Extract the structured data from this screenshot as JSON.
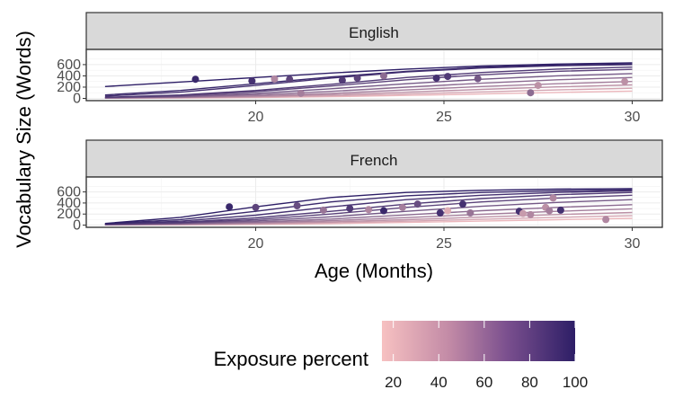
{
  "chart_data": {
    "type": "line",
    "xlabel": "Age (Months)",
    "ylabel": "Vocabulary Size (Words)",
    "xlim": [
      15.5,
      30.8
    ],
    "ylim": [
      -40,
      870
    ],
    "x_ticks": [
      20,
      25,
      30
    ],
    "y_ticks": [
      0,
      200,
      400,
      600
    ],
    "grid": true,
    "legend": {
      "title": "Exposure percent",
      "position": "bottom",
      "min": 15,
      "max": 100,
      "ticks": [
        20,
        40,
        60,
        80,
        100
      ],
      "color_low": "#f7c1c1",
      "color_high": "#2d1e66"
    },
    "panels": [
      {
        "label": "English",
        "curves": [
          {
            "exposure": 100,
            "x": [
              16,
              18,
              20,
              22,
              24,
              26,
              28,
              30
            ],
            "y": [
              210,
              290,
              370,
              450,
              520,
              575,
              610,
              630
            ]
          },
          {
            "exposure": 95,
            "x": [
              16,
              18,
              20,
              22,
              24,
              26,
              28,
              30
            ],
            "y": [
              60,
              140,
              260,
              380,
              480,
              550,
              590,
              610
            ]
          },
          {
            "exposure": 90,
            "x": [
              16,
              18,
              20,
              22,
              24,
              26,
              28,
              30
            ],
            "y": [
              40,
              110,
              230,
              360,
              470,
              540,
              580,
              600
            ]
          },
          {
            "exposure": 85,
            "x": [
              16,
              18,
              20,
              22,
              24,
              26,
              28,
              30
            ],
            "y": [
              20,
              60,
              140,
              250,
              370,
              460,
              520,
              555
            ]
          },
          {
            "exposure": 80,
            "x": [
              16,
              18,
              20,
              22,
              24,
              26,
              28,
              30
            ],
            "y": [
              15,
              50,
              120,
              220,
              330,
              420,
              480,
              515
            ]
          },
          {
            "exposure": 70,
            "x": [
              16,
              18,
              20,
              22,
              24,
              26,
              28,
              30
            ],
            "y": [
              10,
              35,
              90,
              170,
              260,
              340,
              400,
              440
            ]
          },
          {
            "exposure": 60,
            "x": [
              16,
              18,
              20,
              22,
              24,
              26,
              28,
              30
            ],
            "y": [
              8,
              25,
              65,
              125,
              200,
              270,
              330,
              370
            ]
          },
          {
            "exposure": 50,
            "x": [
              16,
              18,
              20,
              22,
              24,
              26,
              28,
              30
            ],
            "y": [
              6,
              18,
              45,
              90,
              150,
              210,
              260,
              300
            ]
          },
          {
            "exposure": 40,
            "x": [
              16,
              18,
              20,
              22,
              24,
              26,
              28,
              30
            ],
            "y": [
              5,
              13,
              32,
              65,
              110,
              160,
              205,
              240
            ]
          },
          {
            "exposure": 30,
            "x": [
              16,
              18,
              20,
              22,
              24,
              26,
              28,
              30
            ],
            "y": [
              4,
              10,
              22,
              45,
              78,
              115,
              150,
              180
            ]
          },
          {
            "exposure": 20,
            "x": [
              16,
              18,
              20,
              22,
              24,
              26,
              28,
              30
            ],
            "y": [
              3,
              7,
              15,
              30,
              52,
              78,
              105,
              130
            ]
          }
        ],
        "points": [
          {
            "x": 18.4,
            "y": 340,
            "exposure": 95
          },
          {
            "x": 19.9,
            "y": 310,
            "exposure": 90
          },
          {
            "x": 20.5,
            "y": 345,
            "exposure": 45
          },
          {
            "x": 20.9,
            "y": 340,
            "exposure": 80
          },
          {
            "x": 21.2,
            "y": 90,
            "exposure": 50
          },
          {
            "x": 22.3,
            "y": 320,
            "exposure": 85
          },
          {
            "x": 22.7,
            "y": 360,
            "exposure": 80
          },
          {
            "x": 23.4,
            "y": 400,
            "exposure": 60
          },
          {
            "x": 24.8,
            "y": 360,
            "exposure": 90
          },
          {
            "x": 25.1,
            "y": 390,
            "exposure": 85
          },
          {
            "x": 25.9,
            "y": 350,
            "exposure": 70
          },
          {
            "x": 27.3,
            "y": 100,
            "exposure": 60
          },
          {
            "x": 27.5,
            "y": 230,
            "exposure": 40
          },
          {
            "x": 29.8,
            "y": 300,
            "exposure": 40
          }
        ]
      },
      {
        "label": "French",
        "curves": [
          {
            "exposure": 100,
            "x": [
              16,
              18,
              20,
              22,
              24,
              26,
              28,
              30
            ],
            "y": [
              30,
              140,
              330,
              500,
              590,
              630,
              650,
              660
            ]
          },
          {
            "exposure": 95,
            "x": [
              16,
              18,
              20,
              22,
              24,
              26,
              28,
              30
            ],
            "y": [
              25,
              100,
              250,
              420,
              530,
              590,
              620,
              640
            ]
          },
          {
            "exposure": 90,
            "x": [
              16,
              18,
              20,
              22,
              24,
              26,
              28,
              30
            ],
            "y": [
              20,
              70,
              180,
              330,
              460,
              540,
              590,
              620
            ]
          },
          {
            "exposure": 85,
            "x": [
              16,
              18,
              20,
              22,
              24,
              26,
              28,
              30
            ],
            "y": [
              15,
              50,
              130,
              250,
              380,
              480,
              550,
              590
            ]
          },
          {
            "exposure": 80,
            "x": [
              16,
              18,
              20,
              22,
              24,
              26,
              28,
              30
            ],
            "y": [
              12,
              40,
              100,
              200,
              320,
              420,
              490,
              540
            ]
          },
          {
            "exposure": 70,
            "x": [
              16,
              18,
              20,
              22,
              24,
              26,
              28,
              30
            ],
            "y": [
              10,
              30,
              75,
              150,
              250,
              340,
              410,
              460
            ]
          },
          {
            "exposure": 60,
            "x": [
              16,
              18,
              20,
              22,
              24,
              26,
              28,
              30
            ],
            "y": [
              8,
              22,
              55,
              110,
              185,
              260,
              320,
              370
            ]
          },
          {
            "exposure": 50,
            "x": [
              16,
              18,
              20,
              22,
              24,
              26,
              28,
              30
            ],
            "y": [
              6,
              16,
              40,
              80,
              135,
              195,
              250,
              295
            ]
          },
          {
            "exposure": 40,
            "x": [
              16,
              18,
              20,
              22,
              24,
              26,
              28,
              30
            ],
            "y": [
              5,
              12,
              28,
              57,
              98,
              145,
              190,
              228
            ]
          },
          {
            "exposure": 30,
            "x": [
              16,
              18,
              20,
              22,
              24,
              26,
              28,
              30
            ],
            "y": [
              4,
              9,
              20,
              40,
              70,
              105,
              140,
              170
            ]
          },
          {
            "exposure": 20,
            "x": [
              16,
              18,
              20,
              22,
              24,
              26,
              28,
              30
            ],
            "y": [
              3,
              6,
              13,
              27,
              47,
              72,
              98,
              122
            ]
          }
        ],
        "points": [
          {
            "x": 19.3,
            "y": 330,
            "exposure": 95
          },
          {
            "x": 20.0,
            "y": 320,
            "exposure": 80
          },
          {
            "x": 21.1,
            "y": 350,
            "exposure": 75
          },
          {
            "x": 21.8,
            "y": 270,
            "exposure": 55
          },
          {
            "x": 22.5,
            "y": 300,
            "exposure": 85
          },
          {
            "x": 23.0,
            "y": 280,
            "exposure": 45
          },
          {
            "x": 23.4,
            "y": 260,
            "exposure": 95
          },
          {
            "x": 23.9,
            "y": 320,
            "exposure": 50
          },
          {
            "x": 24.3,
            "y": 380,
            "exposure": 75
          },
          {
            "x": 24.9,
            "y": 220,
            "exposure": 90
          },
          {
            "x": 25.1,
            "y": 260,
            "exposure": 25
          },
          {
            "x": 25.5,
            "y": 380,
            "exposure": 90
          },
          {
            "x": 25.7,
            "y": 220,
            "exposure": 55
          },
          {
            "x": 27.0,
            "y": 250,
            "exposure": 90
          },
          {
            "x": 27.1,
            "y": 210,
            "exposure": 35
          },
          {
            "x": 27.3,
            "y": 190,
            "exposure": 45
          },
          {
            "x": 27.7,
            "y": 320,
            "exposure": 40
          },
          {
            "x": 27.8,
            "y": 260,
            "exposure": 50
          },
          {
            "x": 27.9,
            "y": 490,
            "exposure": 45
          },
          {
            "x": 28.1,
            "y": 270,
            "exposure": 90
          },
          {
            "x": 29.3,
            "y": 100,
            "exposure": 45
          }
        ]
      }
    ]
  }
}
